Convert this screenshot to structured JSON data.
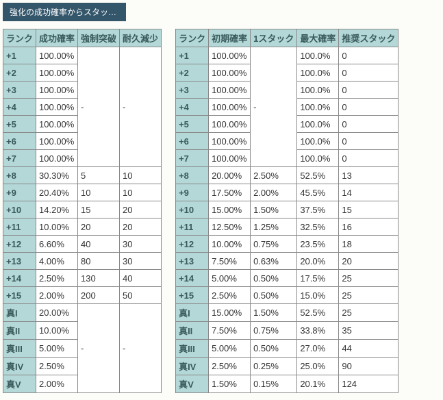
{
  "tab": {
    "label": "強化の成功確率からスタック..."
  },
  "left": {
    "headers": [
      "ランク",
      "成功確率",
      "強制突破",
      "耐久減少"
    ],
    "segments": [
      {
        "rows": [
          {
            "rank": "+1",
            "rate": "100.00%"
          },
          {
            "rank": "+2",
            "rate": "100.00%"
          },
          {
            "rank": "+3",
            "rate": "100.00%"
          },
          {
            "rank": "+4",
            "rate": "100.00%"
          },
          {
            "rank": "+5",
            "rate": "100.00%"
          },
          {
            "rank": "+6",
            "rate": "100.00%"
          },
          {
            "rank": "+7",
            "rate": "100.00%"
          }
        ],
        "force": "-",
        "dura": "-"
      },
      {
        "rows": [
          {
            "rank": "+8",
            "rate": "30.30%",
            "force": "5",
            "dura": "10"
          },
          {
            "rank": "+9",
            "rate": "20.40%",
            "force": "10",
            "dura": "10"
          },
          {
            "rank": "+10",
            "rate": "14.20%",
            "force": "15",
            "dura": "20"
          },
          {
            "rank": "+11",
            "rate": "10.00%",
            "force": "20",
            "dura": "20"
          },
          {
            "rank": "+12",
            "rate": "6.60%",
            "force": "40",
            "dura": "30"
          },
          {
            "rank": "+13",
            "rate": "4.00%",
            "force": "80",
            "dura": "30"
          },
          {
            "rank": "+14",
            "rate": "2.50%",
            "force": "130",
            "dura": "40"
          },
          {
            "rank": "+15",
            "rate": "2.00%",
            "force": "200",
            "dura": "50"
          }
        ]
      },
      {
        "rows": [
          {
            "rank": "真I",
            "rate": "20.00%"
          },
          {
            "rank": "真II",
            "rate": "10.00%"
          },
          {
            "rank": "真III",
            "rate": "5.00%"
          },
          {
            "rank": "真IV",
            "rate": "2.50%"
          },
          {
            "rank": "真V",
            "rate": "2.00%"
          }
        ],
        "force": "-",
        "dura": "-"
      }
    ]
  },
  "right": {
    "headers": [
      "ランク",
      "初期確率",
      "1スタック",
      "最大確率",
      "推奨スタック"
    ],
    "segments": [
      {
        "rows": [
          {
            "rank": "+1",
            "init": "100.00%",
            "max": "100.0%",
            "rec": "0"
          },
          {
            "rank": "+2",
            "init": "100.00%",
            "max": "100.0%",
            "rec": "0"
          },
          {
            "rank": "+3",
            "init": "100.00%",
            "max": "100.0%",
            "rec": "0"
          },
          {
            "rank": "+4",
            "init": "100.00%",
            "max": "100.0%",
            "rec": "0"
          },
          {
            "rank": "+5",
            "init": "100.00%",
            "max": "100.0%",
            "rec": "0"
          },
          {
            "rank": "+6",
            "init": "100.00%",
            "max": "100.0%",
            "rec": "0"
          },
          {
            "rank": "+7",
            "init": "100.00%",
            "max": "100.0%",
            "rec": "0"
          }
        ],
        "per": "-"
      },
      {
        "rows": [
          {
            "rank": "+8",
            "init": "20.00%",
            "per": "2.50%",
            "max": "52.5%",
            "rec": "13"
          },
          {
            "rank": "+9",
            "init": "17.50%",
            "per": "2.00%",
            "max": "45.5%",
            "rec": "14"
          },
          {
            "rank": "+10",
            "init": "15.00%",
            "per": "1.50%",
            "max": "37.5%",
            "rec": "15"
          },
          {
            "rank": "+11",
            "init": "12.50%",
            "per": "1.25%",
            "max": "32.5%",
            "rec": "16"
          },
          {
            "rank": "+12",
            "init": "10.00%",
            "per": "0.75%",
            "max": "23.5%",
            "rec": "18"
          },
          {
            "rank": "+13",
            "init": "7.50%",
            "per": "0.63%",
            "max": "20.0%",
            "rec": "20"
          },
          {
            "rank": "+14",
            "init": "5.00%",
            "per": "0.50%",
            "max": "17.5%",
            "rec": "25"
          },
          {
            "rank": "+15",
            "init": "2.50%",
            "per": "0.50%",
            "max": "15.0%",
            "rec": "25"
          },
          {
            "rank": "真I",
            "init": "15.00%",
            "per": "1.50%",
            "max": "52.5%",
            "rec": "25"
          },
          {
            "rank": "真II",
            "init": "7.50%",
            "per": "0.75%",
            "max": "33.8%",
            "rec": "35"
          },
          {
            "rank": "真III",
            "init": "5.00%",
            "per": "0.50%",
            "max": "27.0%",
            "rec": "44"
          },
          {
            "rank": "真IV",
            "init": "2.50%",
            "per": "0.25%",
            "max": "25.0%",
            "rec": "90"
          },
          {
            "rank": "真V",
            "init": "1.50%",
            "per": "0.15%",
            "max": "20.1%",
            "rec": "124"
          }
        ]
      }
    ]
  }
}
